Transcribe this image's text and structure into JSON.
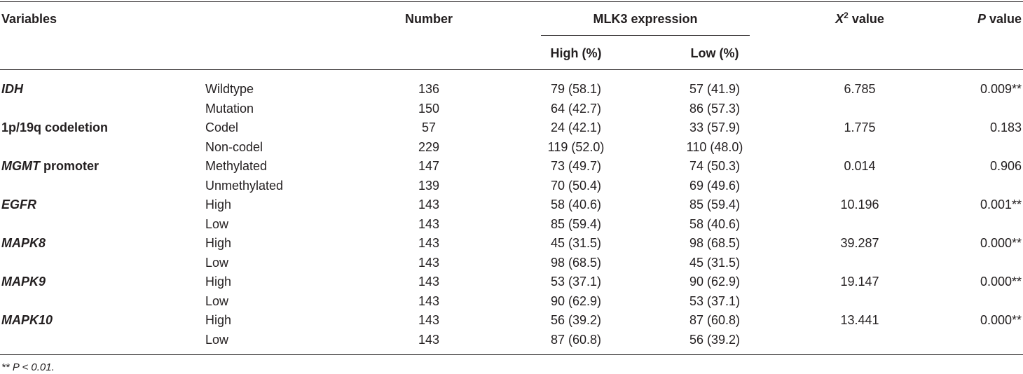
{
  "headers": {
    "variables": "Variables",
    "number": "Number",
    "expression": "MLK3 expression",
    "high": "High (%)",
    "low": "Low (%)",
    "chi_sym": "X",
    "chi_sup": "2",
    "chi_rest": " value",
    "p_sym": "P",
    "p_rest": " value"
  },
  "rows": [
    {
      "variable": "IDH",
      "italic": true,
      "subgroup": "Wildtype",
      "number": "136",
      "high": "79 (58.1)",
      "low": "57 (41.9)",
      "chi2": "6.785",
      "p": "0.009**"
    },
    {
      "variable": "",
      "italic": false,
      "subgroup": "Mutation",
      "number": "150",
      "high": "64 (42.7)",
      "low": "86 (57.3)",
      "chi2": "",
      "p": ""
    },
    {
      "variable": "1p/19q codeletion",
      "italic": false,
      "subgroup": "Codel",
      "number": "57",
      "high": "24 (42.1)",
      "low": "33 (57.9)",
      "chi2": "1.775",
      "p": "0.183"
    },
    {
      "variable": "",
      "italic": false,
      "subgroup": "Non-codel",
      "number": "229",
      "high": "119 (52.0)",
      "low": "110 (48.0)",
      "chi2": "",
      "p": ""
    },
    {
      "variable": "MGMT",
      "italic": true,
      "variable_suffix": " promoter",
      "subgroup": "Methylated",
      "number": "147",
      "high": "73 (49.7)",
      "low": "74 (50.3)",
      "chi2": "0.014",
      "p": "0.906"
    },
    {
      "variable": "",
      "italic": false,
      "subgroup": "Unmethylated",
      "number": "139",
      "high": "70 (50.4)",
      "low": "69 (49.6)",
      "chi2": "",
      "p": ""
    },
    {
      "variable": "EGFR",
      "italic": true,
      "subgroup": "High",
      "number": "143",
      "high": "58 (40.6)",
      "low": "85 (59.4)",
      "chi2": "10.196",
      "p": "0.001**"
    },
    {
      "variable": "",
      "italic": false,
      "subgroup": "Low",
      "number": "143",
      "high": "85 (59.4)",
      "low": "58 (40.6)",
      "chi2": "",
      "p": ""
    },
    {
      "variable": "MAPK8",
      "italic": true,
      "subgroup": "High",
      "number": "143",
      "high": "45 (31.5)",
      "low": "98 (68.5)",
      "chi2": "39.287",
      "p": "0.000**"
    },
    {
      "variable": "",
      "italic": false,
      "subgroup": "Low",
      "number": "143",
      "high": "98 (68.5)",
      "low": "45 (31.5)",
      "chi2": "",
      "p": ""
    },
    {
      "variable": "MAPK9",
      "italic": true,
      "subgroup": "High",
      "number": "143",
      "high": "53 (37.1)",
      "low": "90 (62.9)",
      "chi2": "19.147",
      "p": "0.000**"
    },
    {
      "variable": "",
      "italic": false,
      "subgroup": "Low",
      "number": "143",
      "high": "90 (62.9)",
      "low": "53 (37.1)",
      "chi2": "",
      "p": ""
    },
    {
      "variable": "MAPK10",
      "italic": true,
      "subgroup": "High",
      "number": "143",
      "high": "56 (39.2)",
      "low": "87 (60.8)",
      "chi2": "13.441",
      "p": "0.000**"
    },
    {
      "variable": "",
      "italic": false,
      "subgroup": "Low",
      "number": "143",
      "high": "87 (60.8)",
      "low": "56 (39.2)",
      "chi2": "",
      "p": ""
    }
  ],
  "footnote": "** P < 0.01."
}
